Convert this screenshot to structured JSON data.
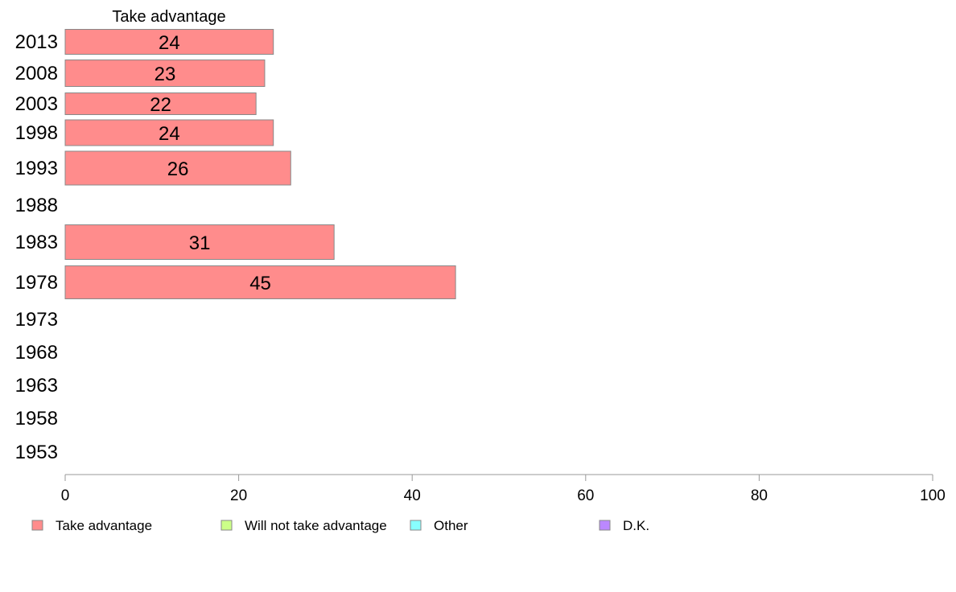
{
  "chart_data": {
    "type": "bar",
    "orientation": "horizontal",
    "series_title": "Take advantage",
    "categories": [
      "2013",
      "2008",
      "2003",
      "1998",
      "1993",
      "1988",
      "1983",
      "1978",
      "1973",
      "1968",
      "1963",
      "1958",
      "1953"
    ],
    "series": [
      {
        "name": "Take advantage",
        "values": [
          24,
          23,
          22,
          24,
          26,
          null,
          31,
          45,
          null,
          null,
          null,
          null,
          null
        ],
        "labels": [
          "24",
          "23",
          "22",
          "24",
          "26",
          "",
          "31",
          "45",
          "",
          "",
          "",
          "",
          ""
        ]
      }
    ],
    "xlim": [
      0,
      100
    ],
    "xticks": [
      "0",
      "20",
      "40",
      "60",
      "80",
      "100"
    ],
    "grid": false,
    "legend": {
      "placement": "bottom",
      "items": [
        {
          "label": "Take advantage",
          "color": "#ff8c8c"
        },
        {
          "label": "Will not take advantage",
          "color": "#ccff88"
        },
        {
          "label": "Other",
          "color": "#88ffff"
        },
        {
          "label": "D.K.",
          "color": "#bb88ff"
        }
      ]
    },
    "colors": {
      "bar_fill": "#ff8c8c",
      "bar_stroke": "#888888",
      "axis": "#999999"
    }
  }
}
